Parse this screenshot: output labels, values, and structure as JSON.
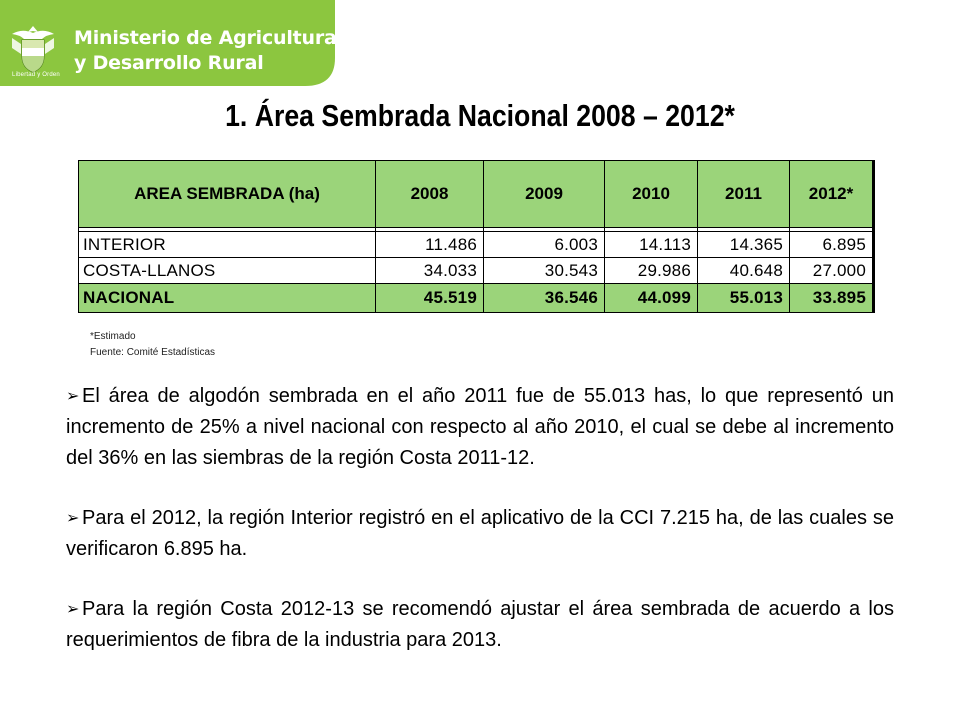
{
  "header": {
    "ministry_line1": "Ministerio de Agricultura",
    "ministry_line2": "y Desarrollo Rural",
    "motto": "Libertad y Orden",
    "brand_color": "#8cc63f"
  },
  "title": "1. Área Sembrada  Nacional 2008 – 2012*",
  "table": {
    "header_color": "#9bd47a",
    "columns": [
      "AREA SEMBRADA (ha)",
      "2008",
      "2009",
      "2010",
      "2011",
      "2012*"
    ],
    "rows": [
      [
        "INTERIOR",
        "11.486",
        "6.003",
        "14.113",
        "14.365",
        "6.895"
      ],
      [
        "COSTA-LLANOS",
        "34.033",
        "30.543",
        "29.986",
        "40.648",
        "27.000"
      ]
    ],
    "total": [
      "NACIONAL",
      "45.519",
      "36.546",
      "44.099",
      "55.013",
      "33.895"
    ]
  },
  "notes": {
    "estimated": "*Estimado",
    "source": "Fuente: Comité Estadísticas"
  },
  "bullets": [
    "El área de algodón sembrada en el año 2011 fue de 55.013 has, lo que representó un incremento de 25% a nivel nacional con respecto al año 2010, el cual se debe al incremento del 36% en las siembras de la región Costa 2011-12.",
    "Para el 2012, la región Interior registró en el aplicativo de la CCI 7.215 ha, de las cuales se verificaron 6.895 ha.",
    "Para la región Costa 2012-13 se recomendó ajustar el área sembrada de acuerdo a los requerimientos de fibra de la industria para 2013."
  ]
}
